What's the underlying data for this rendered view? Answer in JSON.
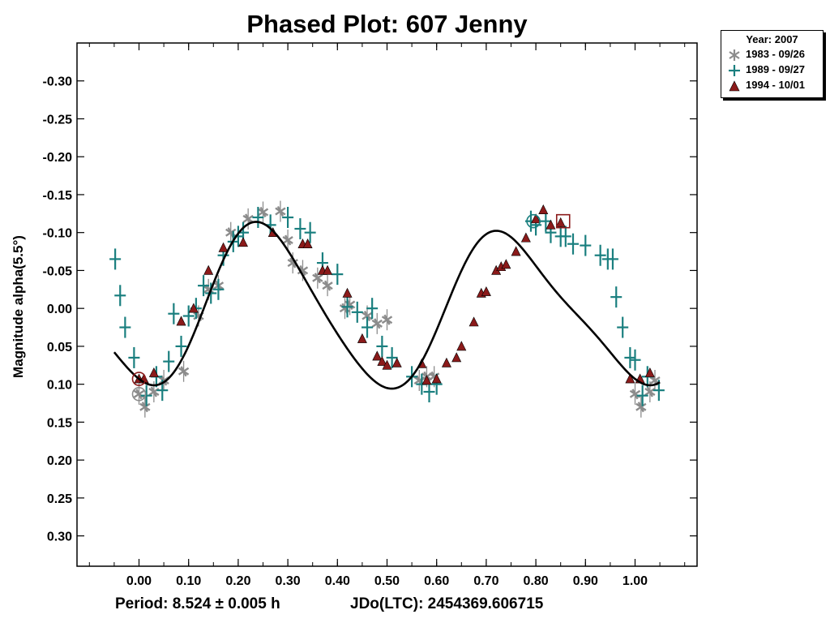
{
  "chart_data": {
    "type": "scatter",
    "title": "Phased Plot: 607 Jenny",
    "ylabel": "Magnitude alpha(5.5°)",
    "xlim": [
      -0.125,
      1.125
    ],
    "ylim": [
      0.34,
      -0.35
    ],
    "y_inverted": true,
    "x_ticks": [
      "0.00",
      "0.10",
      "0.20",
      "0.30",
      "0.40",
      "0.50",
      "0.60",
      "0.70",
      "0.80",
      "0.90",
      "1.00"
    ],
    "y_ticks": [
      "-0.30",
      "-0.25",
      "-0.20",
      "-0.15",
      "-0.10",
      "-0.05",
      "0.00",
      "0.05",
      "0.10",
      "0.15",
      "0.20",
      "0.25",
      "0.30"
    ],
    "legend_title": "Year: 2007",
    "legend_position": "top-right, outside plot",
    "series": [
      {
        "name": "1983 - 09/26",
        "marker": "asterisk",
        "color": "#8c8c8c",
        "points": [
          [
            0.0,
            0.113
          ],
          [
            0.012,
            0.13
          ],
          [
            0.03,
            0.11
          ],
          [
            0.05,
            0.095
          ],
          [
            0.09,
            0.083
          ],
          [
            0.12,
            0.01
          ],
          [
            0.14,
            -0.025
          ],
          [
            0.16,
            -0.03
          ],
          [
            0.185,
            -0.1
          ],
          [
            0.22,
            -0.118
          ],
          [
            0.25,
            -0.127
          ],
          [
            0.285,
            -0.128
          ],
          [
            0.3,
            -0.09
          ],
          [
            0.31,
            -0.06
          ],
          [
            0.33,
            -0.05
          ],
          [
            0.36,
            -0.04
          ],
          [
            0.38,
            -0.03
          ],
          [
            0.415,
            0.0
          ],
          [
            0.425,
            -0.005
          ],
          [
            0.46,
            0.01
          ],
          [
            0.48,
            0.02
          ],
          [
            0.5,
            0.015
          ],
          [
            0.565,
            0.095
          ],
          [
            0.58,
            0.09
          ],
          [
            0.595,
            0.09
          ],
          [
            1.0,
            0.113
          ],
          [
            1.012,
            0.13
          ],
          [
            1.03,
            0.11
          ],
          [
            1.04,
            0.095
          ]
        ]
      },
      {
        "name": "1989 - 09/27",
        "marker": "plus",
        "color": "#1a7f7f",
        "points": [
          [
            -0.048,
            -0.065
          ],
          [
            -0.038,
            -0.017
          ],
          [
            -0.028,
            0.025
          ],
          [
            -0.01,
            0.065
          ],
          [
            0.015,
            0.115
          ],
          [
            0.035,
            0.09
          ],
          [
            0.047,
            0.108
          ],
          [
            0.06,
            0.07
          ],
          [
            0.07,
            0.007
          ],
          [
            0.085,
            0.05
          ],
          [
            0.1,
            0.01
          ],
          [
            0.115,
            0.0
          ],
          [
            0.13,
            -0.03
          ],
          [
            0.145,
            -0.02
          ],
          [
            0.16,
            -0.025
          ],
          [
            0.17,
            -0.07
          ],
          [
            0.19,
            -0.088
          ],
          [
            0.2,
            -0.095
          ],
          [
            0.21,
            -0.1
          ],
          [
            0.24,
            -0.12
          ],
          [
            0.265,
            -0.11
          ],
          [
            0.3,
            -0.12
          ],
          [
            0.325,
            -0.105
          ],
          [
            0.345,
            -0.1
          ],
          [
            0.37,
            -0.06
          ],
          [
            0.4,
            -0.045
          ],
          [
            0.42,
            -0.002
          ],
          [
            0.44,
            0.005
          ],
          [
            0.46,
            0.025
          ],
          [
            0.47,
            0.0
          ],
          [
            0.49,
            0.05
          ],
          [
            0.51,
            0.065
          ],
          [
            0.55,
            0.09
          ],
          [
            0.57,
            0.1
          ],
          [
            0.585,
            0.11
          ],
          [
            0.6,
            0.1
          ],
          [
            0.79,
            -0.115
          ],
          [
            0.8,
            -0.11
          ],
          [
            0.82,
            -0.115
          ],
          [
            0.83,
            -0.1
          ],
          [
            0.85,
            -0.095
          ],
          [
            0.86,
            -0.095
          ],
          [
            0.875,
            -0.085
          ],
          [
            0.9,
            -0.083
          ],
          [
            0.93,
            -0.07
          ],
          [
            0.945,
            -0.065
          ],
          [
            0.955,
            -0.065
          ],
          [
            0.962,
            -0.015
          ],
          [
            0.975,
            0.025
          ],
          [
            0.99,
            0.065
          ],
          [
            1.0,
            0.068
          ],
          [
            1.015,
            0.115
          ],
          [
            1.025,
            0.09
          ],
          [
            1.048,
            0.108
          ]
        ]
      },
      {
        "name": "1994 - 10/01",
        "marker": "triangle",
        "color": "#8b1a1a",
        "points": [
          [
            0.0,
            0.093
          ],
          [
            0.01,
            0.093
          ],
          [
            0.03,
            0.085
          ],
          [
            0.085,
            0.017
          ],
          [
            0.11,
            0.0
          ],
          [
            0.14,
            -0.05
          ],
          [
            0.17,
            -0.08
          ],
          [
            0.21,
            -0.087
          ],
          [
            0.27,
            -0.1
          ],
          [
            0.33,
            -0.085
          ],
          [
            0.34,
            -0.085
          ],
          [
            0.37,
            -0.05
          ],
          [
            0.38,
            -0.05
          ],
          [
            0.42,
            -0.02
          ],
          [
            0.45,
            0.04
          ],
          [
            0.48,
            0.063
          ],
          [
            0.49,
            0.07
          ],
          [
            0.5,
            0.075
          ],
          [
            0.52,
            0.072
          ],
          [
            0.57,
            0.073
          ],
          [
            0.58,
            0.095
          ],
          [
            0.6,
            0.093
          ],
          [
            0.62,
            0.072
          ],
          [
            0.64,
            0.065
          ],
          [
            0.65,
            0.05
          ],
          [
            0.675,
            0.018
          ],
          [
            0.69,
            -0.02
          ],
          [
            0.7,
            -0.022
          ],
          [
            0.72,
            -0.05
          ],
          [
            0.73,
            -0.055
          ],
          [
            0.74,
            -0.058
          ],
          [
            0.76,
            -0.075
          ],
          [
            0.78,
            -0.093
          ],
          [
            0.8,
            -0.118
          ],
          [
            0.815,
            -0.13
          ],
          [
            0.83,
            -0.11
          ],
          [
            0.85,
            -0.113
          ],
          [
            0.99,
            0.093
          ],
          [
            1.01,
            0.093
          ],
          [
            1.03,
            0.085
          ]
        ]
      }
    ],
    "fit_curve": {
      "type": "fourier",
      "mean": 0.0,
      "a1": 0.0,
      "b1": 0.0,
      "a2": 0.101,
      "b2": -0.003,
      "a3": -0.006,
      "b3": 0.009,
      "a4": -0.002,
      "b4": 0.015,
      "phase_range": [
        -0.05,
        1.05
      ],
      "color": "#000000"
    },
    "highlight_markers": [
      {
        "series": "1983 - 09/26",
        "shape": "circle",
        "x": 0.0,
        "y": 0.113
      },
      {
        "series": "1994 - 10/01",
        "shape": "circle",
        "x": 0.0,
        "y": 0.093
      },
      {
        "series": "1989 - 09/27",
        "shape": "circle",
        "x": 0.795,
        "y": -0.115
      },
      {
        "series": "1994 - 10/01",
        "shape": "square",
        "x": 0.855,
        "y": -0.115
      }
    ]
  },
  "footer": {
    "period": "Period: 8.524 ± 0.005 h",
    "jdo": "JDo(LTC): 2454369.606715"
  }
}
